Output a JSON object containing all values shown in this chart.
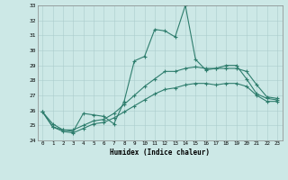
{
  "xlabel": "Humidex (Indice chaleur)",
  "xlim_min": 0,
  "xlim_max": 23,
  "ylim_min": 24,
  "ylim_max": 33,
  "yticks": [
    24,
    25,
    26,
    27,
    28,
    29,
    30,
    31,
    32,
    33
  ],
  "xticks": [
    0,
    1,
    2,
    3,
    4,
    5,
    6,
    7,
    8,
    9,
    10,
    11,
    12,
    13,
    14,
    15,
    16,
    17,
    18,
    19,
    20,
    21,
    22,
    23
  ],
  "bg_color": "#cce8e6",
  "grid_color": "#aacccc",
  "line_color": "#2e7d6d",
  "series1": [
    25.9,
    25.1,
    24.7,
    24.6,
    25.8,
    25.7,
    25.6,
    25.1,
    26.6,
    29.3,
    29.6,
    31.4,
    31.3,
    30.9,
    33.0,
    29.4,
    28.7,
    28.8,
    29.0,
    29.0,
    28.1,
    27.1,
    26.8,
    26.7
  ],
  "series2": [
    25.9,
    24.9,
    24.7,
    24.7,
    25.0,
    25.3,
    25.4,
    25.8,
    26.4,
    27.0,
    27.6,
    28.1,
    28.6,
    28.6,
    28.8,
    28.9,
    28.8,
    28.8,
    28.8,
    28.8,
    28.6,
    27.7,
    26.9,
    26.8
  ],
  "series3": [
    25.9,
    24.9,
    24.6,
    24.5,
    24.8,
    25.1,
    25.2,
    25.5,
    25.9,
    26.3,
    26.7,
    27.1,
    27.4,
    27.5,
    27.7,
    27.8,
    27.8,
    27.7,
    27.8,
    27.8,
    27.6,
    27.0,
    26.6,
    26.6
  ]
}
